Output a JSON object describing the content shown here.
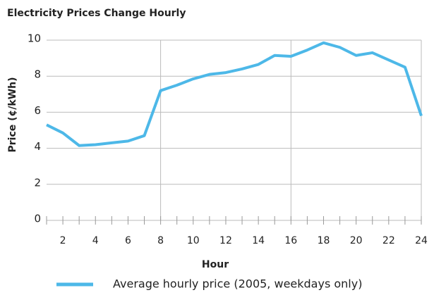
{
  "chart_data": {
    "type": "line",
    "title": "Electricity Prices Change Hourly",
    "x_label": "Hour",
    "y_label": "Price (¢/kWh)",
    "x": [
      1,
      2,
      3,
      4,
      5,
      6,
      7,
      8,
      9,
      10,
      11,
      12,
      13,
      14,
      15,
      16,
      17,
      18,
      19,
      20,
      21,
      22,
      23,
      24
    ],
    "series": [
      {
        "name": "Average hourly price (2005, weekdays only)",
        "color": "#4db8e8",
        "values": [
          5.3,
          4.85,
          4.15,
          4.2,
          4.3,
          4.4,
          4.7,
          7.2,
          7.5,
          7.85,
          8.1,
          8.2,
          8.4,
          8.65,
          9.15,
          9.1,
          9.45,
          9.85,
          9.6,
          9.15,
          9.3,
          8.9,
          8.5,
          5.8
        ]
      }
    ],
    "xlim": [
      1,
      24
    ],
    "xticks": [
      2,
      4,
      6,
      8,
      10,
      12,
      14,
      16,
      18,
      20,
      22,
      24
    ],
    "xgrid": [
      8,
      16,
      24
    ],
    "ylim": [
      0,
      10
    ],
    "yticks": [
      0,
      2,
      4,
      6,
      8,
      10
    ],
    "grid": true
  }
}
